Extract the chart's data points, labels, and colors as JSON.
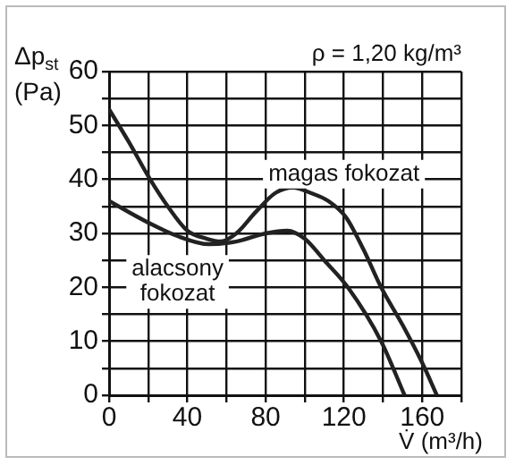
{
  "chart_data": {
    "type": "line",
    "subtitle": "ρ = 1,20 kg/m³",
    "xlabel": "V̇ (m³/h)",
    "ylabel": "Δp$_{st}$ (Pa)",
    "xlim": [
      0,
      180
    ],
    "xticks": [
      0,
      {
        "value": 20,
        "label": null
      },
      40,
      {
        "value": 60,
        "label": null
      },
      80,
      {
        "value": 100,
        "label": null
      },
      120,
      {
        "value": 140,
        "label": null
      },
      160,
      {
        "value": 180,
        "label": null
      }
    ],
    "ylim": [
      0,
      60
    ],
    "yticks": [
      0,
      {
        "value": 5,
        "label": null
      },
      10,
      {
        "value": 15,
        "label": null
      },
      20,
      {
        "value": 25,
        "label": null
      },
      30,
      {
        "value": 35,
        "label": null
      },
      40,
      {
        "value": 45,
        "label": null
      },
      50,
      {
        "value": 55,
        "label": null
      },
      60
    ],
    "grid": true,
    "legend": false,
    "marker": "none",
    "line_style": "solid",
    "series": [
      {
        "name": "magas fokozat",
        "color": "#222222",
        "x": [
          0,
          10,
          21,
          30,
          40,
          50,
          57,
          65,
          75,
          85,
          94,
          103,
          112,
          121,
          130,
          139,
          150,
          160,
          167.5
        ],
        "values": [
          53,
          47,
          40,
          35,
          30.5,
          29,
          28.5,
          30,
          34,
          37.5,
          38.5,
          37.5,
          36,
          33,
          27,
          20,
          13,
          6,
          0
        ]
      },
      {
        "name": "alacsony fokozat",
        "color": "#222222",
        "x": [
          0,
          20,
          35,
          51,
          65,
          80,
          91,
          100,
          110,
          122,
          139,
          151
        ],
        "values": [
          36,
          32,
          29.5,
          28,
          28.5,
          30,
          30.5,
          29,
          25,
          20,
          10,
          0
        ]
      }
    ]
  }
}
